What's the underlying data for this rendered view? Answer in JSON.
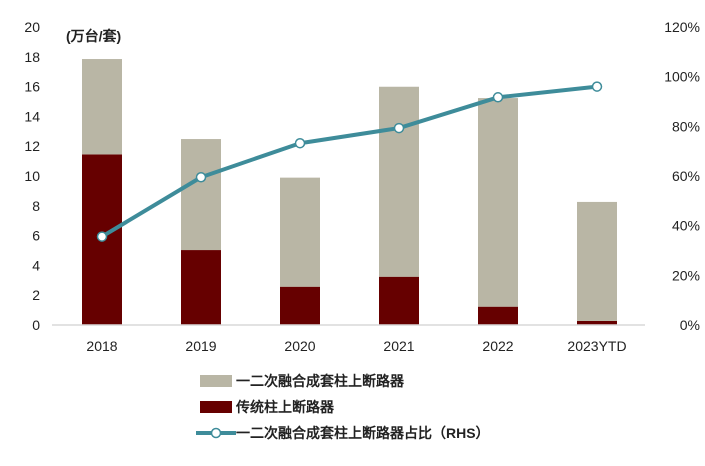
{
  "chart_data": {
    "type": "bar",
    "stacked": true,
    "categories": [
      "2018",
      "2019",
      "2020",
      "2021",
      "2022",
      "2023YTD"
    ],
    "unit_label": "(万台/套)",
    "ylim": [
      0,
      20
    ],
    "yticks": [
      "0",
      "2",
      "4",
      "6",
      "8",
      "10",
      "12",
      "14",
      "16",
      "18",
      "20"
    ],
    "y2lim": [
      0,
      120
    ],
    "y2ticks": [
      "0%",
      "20%",
      "40%",
      "60%",
      "80%",
      "100%",
      "120%"
    ],
    "grid": false,
    "legend_position": "bottom",
    "series": [
      {
        "name": "传统柱上断路器",
        "kind": "bar",
        "color": "#660000",
        "values": [
          11.45,
          5.03,
          2.57,
          3.24,
          1.23,
          0.27
        ]
      },
      {
        "name": "一二次融合成套柱上断路器",
        "kind": "bar",
        "color": "#B9B6A5",
        "values": [
          6.4,
          7.45,
          7.32,
          12.75,
          14.0,
          7.99
        ]
      },
      {
        "name": "一二次融合成套柱上断路器占比（RHS）",
        "kind": "line",
        "axis": "right",
        "color": "#3E8C9A",
        "values": [
          35.6,
          59.5,
          73.2,
          79.3,
          91.7,
          96.0
        ]
      }
    ],
    "legend_order": [
      1,
      0,
      2
    ]
  }
}
